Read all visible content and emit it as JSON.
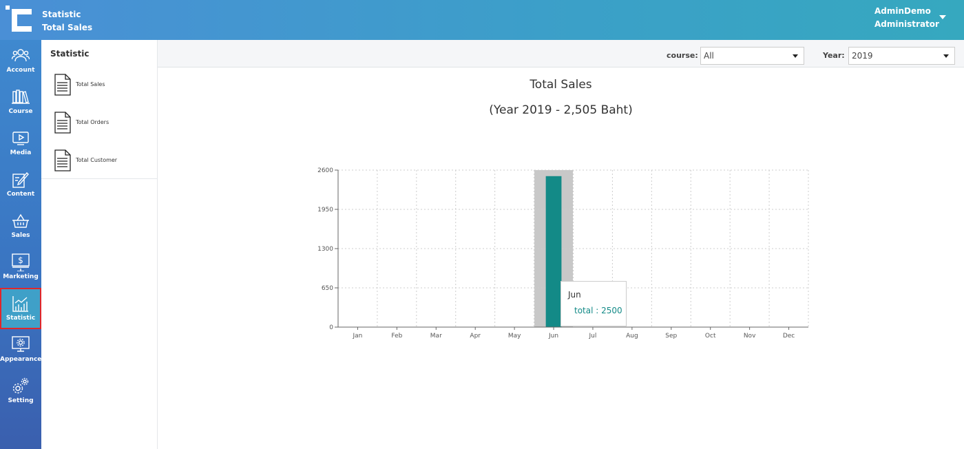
{
  "header": {
    "breadcrumb_1": "Statistic",
    "breadcrumb_2": "Total Sales",
    "user_name": "AdminDemo",
    "user_role": "Administrator"
  },
  "nav": {
    "items": [
      {
        "label": "Account",
        "icon": "users-icon"
      },
      {
        "label": "Course",
        "icon": "books-icon"
      },
      {
        "label": "Media",
        "icon": "play-icon"
      },
      {
        "label": "Content",
        "icon": "pencil-icon"
      },
      {
        "label": "Sales",
        "icon": "basket-icon"
      },
      {
        "label": "Marketing",
        "icon": "dollar-monitor-icon"
      },
      {
        "label": "Statistic",
        "icon": "bar-chart-icon",
        "active": true
      },
      {
        "label": "Appearance",
        "icon": "gear-monitor-icon"
      },
      {
        "label": "Setting",
        "icon": "gears-icon"
      }
    ]
  },
  "subnav": {
    "title": "Statistic",
    "items": [
      {
        "label": "Total Sales",
        "icon": "document-icon"
      },
      {
        "label": "Total Orders",
        "icon": "document-icon"
      },
      {
        "label": "Total Customer",
        "icon": "document-icon"
      }
    ]
  },
  "filters": {
    "course_label": "course:",
    "course_value": "All",
    "year_label": "Year:",
    "year_value": "2019"
  },
  "colors": {
    "bar": "#138a87",
    "highlight": "#c8c8c8",
    "active_nav_outline": "#e0262a"
  },
  "chart_data": {
    "type": "bar",
    "title": "Total Sales",
    "subtitle": "(Year 2019 - 2,505 Baht)",
    "categories": [
      "Jan",
      "Feb",
      "Mar",
      "Apr",
      "May",
      "Jun",
      "Jul",
      "Aug",
      "Sep",
      "Oct",
      "Nov",
      "Dec"
    ],
    "series": [
      {
        "name": "total",
        "values": [
          0,
          0,
          0,
          0,
          5,
          2500,
          0,
          0,
          0,
          0,
          0,
          0
        ]
      }
    ],
    "yticks": [
      "0",
      "650",
      "1300",
      "1950",
      "2600"
    ],
    "ylim": [
      0,
      2600
    ],
    "grid": true,
    "highlighted_category": "Jun",
    "tooltip": {
      "category": "Jun",
      "text": "total : 2500"
    }
  }
}
